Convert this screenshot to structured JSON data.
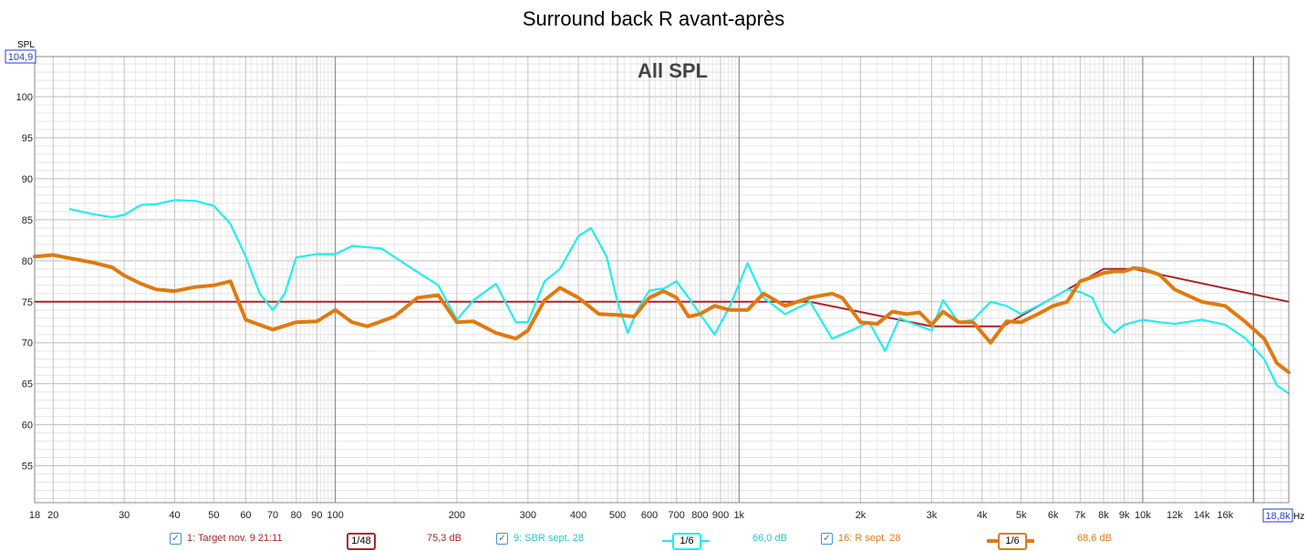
{
  "title": "Surround back R avant-après",
  "overlay_label": "All SPL",
  "y_axis_unit": "SPL",
  "y_max_readout": "104,9",
  "x_axis_unit": "Hz",
  "x_max_readout": "18,8k",
  "chart_data": {
    "type": "line",
    "x_scale": "log",
    "xlim": [
      18,
      23000
    ],
    "ylim": [
      50.5,
      104.9
    ],
    "grid": true,
    "x_tick_labels": [
      {
        "f": 18,
        "label": "18"
      },
      {
        "f": 20,
        "label": "20"
      },
      {
        "f": 30,
        "label": "30"
      },
      {
        "f": 40,
        "label": "40"
      },
      {
        "f": 50,
        "label": "50"
      },
      {
        "f": 60,
        "label": "60"
      },
      {
        "f": 70,
        "label": "70"
      },
      {
        "f": 80,
        "label": "80"
      },
      {
        "f": 90,
        "label": "90"
      },
      {
        "f": 100,
        "label": "100"
      },
      {
        "f": 200,
        "label": "200"
      },
      {
        "f": 300,
        "label": "300"
      },
      {
        "f": 400,
        "label": "400"
      },
      {
        "f": 500,
        "label": "500"
      },
      {
        "f": 600,
        "label": "600"
      },
      {
        "f": 700,
        "label": "700"
      },
      {
        "f": 800,
        "label": "800"
      },
      {
        "f": 900,
        "label": "900"
      },
      {
        "f": 1000,
        "label": "1k"
      },
      {
        "f": 2000,
        "label": "2k"
      },
      {
        "f": 3000,
        "label": "3k"
      },
      {
        "f": 4000,
        "label": "4k"
      },
      {
        "f": 5000,
        "label": "5k"
      },
      {
        "f": 6000,
        "label": "6k"
      },
      {
        "f": 7000,
        "label": "7k"
      },
      {
        "f": 8000,
        "label": "8k"
      },
      {
        "f": 9000,
        "label": "9k"
      },
      {
        "f": 10000,
        "label": "10k"
      },
      {
        "f": 12000,
        "label": "12k"
      },
      {
        "f": 14000,
        "label": "14k"
      },
      {
        "f": 16000,
        "label": "16k"
      }
    ],
    "y_ticks": [
      55,
      60,
      65,
      70,
      75,
      80,
      85,
      90,
      95,
      100
    ],
    "series": [
      {
        "name": "1: Target nov. 9 21:11",
        "color": "#b22222",
        "smoothing": "1/48",
        "level": "75,3 dB",
        "x": [
          18,
          1500,
          3000,
          4500,
          8000,
          9500,
          23000
        ],
        "y": [
          75,
          75,
          72,
          72,
          79,
          79,
          75
        ]
      },
      {
        "name": "9: SBR sept. 28",
        "color": "#22eeee",
        "smoothing": "1/6",
        "level": "66,0 dB",
        "x": [
          22,
          25,
          28,
          30,
          33,
          36,
          40,
          45,
          50,
          55,
          60,
          65,
          70,
          75,
          80,
          90,
          100,
          110,
          130,
          150,
          180,
          200,
          220,
          250,
          280,
          300,
          330,
          360,
          400,
          430,
          470,
          500,
          530,
          560,
          600,
          650,
          700,
          750,
          800,
          870,
          950,
          1050,
          1150,
          1300,
          1500,
          1700,
          1900,
          2100,
          2300,
          2500,
          2700,
          3000,
          3200,
          3500,
          3800,
          4200,
          4600,
          5000,
          5500,
          6000,
          6500,
          7000,
          7500,
          8000,
          8500,
          9000,
          9500,
          10000,
          11000,
          12000,
          14000,
          16000,
          18000,
          20000,
          21500,
          23000
        ],
        "y": [
          86.3,
          85.7,
          85.3,
          85.6,
          86.8,
          86.9,
          87.4,
          87.3,
          86.7,
          84.5,
          80.5,
          76,
          74,
          76,
          80.4,
          80.8,
          80.8,
          81.8,
          81.5,
          79.5,
          77,
          72.8,
          75.2,
          77.2,
          72.5,
          72.5,
          77.5,
          79,
          83,
          84,
          80.5,
          75,
          71.2,
          74,
          76.4,
          76.6,
          77.5,
          75.5,
          73.5,
          71,
          74.5,
          79.7,
          75.5,
          73.5,
          75,
          70.5,
          71.5,
          72.5,
          69,
          73,
          72.3,
          71.5,
          75.2,
          72.5,
          72.8,
          75,
          74.5,
          73.5,
          74.5,
          75.5,
          76.5,
          76.2,
          75.5,
          72.5,
          71.2,
          72.2,
          72.5,
          72.8,
          72.5,
          72.3,
          72.8,
          72.2,
          70.5,
          68,
          64.8,
          63.8
        ]
      },
      {
        "name": "16: R sept. 28",
        "color": "#e07a10",
        "smoothing": "1/6",
        "level": "68,6 dB",
        "x": [
          18,
          20,
          22,
          25,
          28,
          30,
          33,
          36,
          40,
          45,
          50,
          55,
          60,
          70,
          80,
          90,
          100,
          110,
          120,
          140,
          160,
          180,
          200,
          220,
          250,
          280,
          300,
          330,
          360,
          400,
          450,
          500,
          550,
          600,
          650,
          700,
          750,
          800,
          870,
          950,
          1050,
          1150,
          1300,
          1500,
          1700,
          1800,
          2000,
          2200,
          2400,
          2600,
          2800,
          3000,
          3200,
          3500,
          3800,
          4200,
          4600,
          5000,
          5500,
          6000,
          6500,
          7000,
          7500,
          8000,
          8500,
          9000,
          9500,
          10000,
          11000,
          12000,
          14000,
          16000,
          18000,
          20000,
          21500,
          23000
        ],
        "y": [
          80.5,
          80.7,
          80.3,
          79.8,
          79.2,
          78.2,
          77.2,
          76.5,
          76.3,
          76.8,
          77,
          77.5,
          72.8,
          71.6,
          72.5,
          72.6,
          74,
          72.5,
          72,
          73.2,
          75.5,
          75.8,
          72.5,
          72.6,
          71.2,
          70.5,
          71.5,
          75.2,
          76.7,
          75.5,
          73.5,
          73.4,
          73.2,
          75.5,
          76.3,
          75.5,
          73.2,
          73.5,
          74.5,
          74,
          74,
          76,
          74.5,
          75.5,
          76,
          75.5,
          72.5,
          72.3,
          73.8,
          73.5,
          73.7,
          72.2,
          73.8,
          72.5,
          72.5,
          70,
          72.6,
          72.5,
          73.5,
          74.5,
          75,
          77.5,
          78,
          78.5,
          78.7,
          78.7,
          79.1,
          79,
          78.3,
          76.5,
          75,
          74.5,
          72.5,
          70.5,
          67.5,
          66.4
        ]
      }
    ]
  }
}
